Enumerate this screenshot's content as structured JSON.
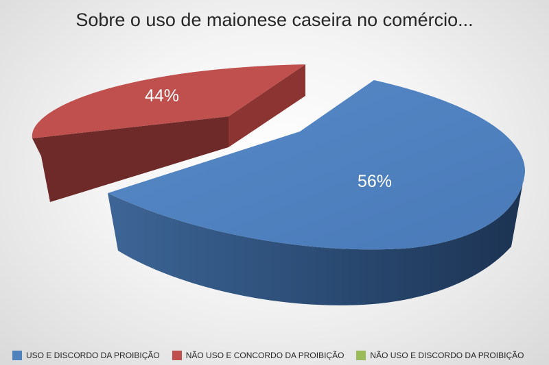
{
  "chart_data": {
    "type": "pie",
    "title": "Sobre o uso de maionese caseira no comércio...",
    "series": [
      {
        "name": "USO E DISCORDO DA PROIBIÇÃO",
        "value": 56,
        "label": "56%",
        "color": "#4f81bd"
      },
      {
        "name": "NÃO USO E CONCORDO DA PROIBIÇÃO",
        "value": 44,
        "label": "44%",
        "color": "#c0504d"
      },
      {
        "name": "NÃO USO E DISCORDO DA PROIBIÇÃO",
        "value": 0,
        "label": "",
        "color": "#9bbb59"
      }
    ],
    "legend_position": "bottom",
    "style": "3d-exploded"
  }
}
